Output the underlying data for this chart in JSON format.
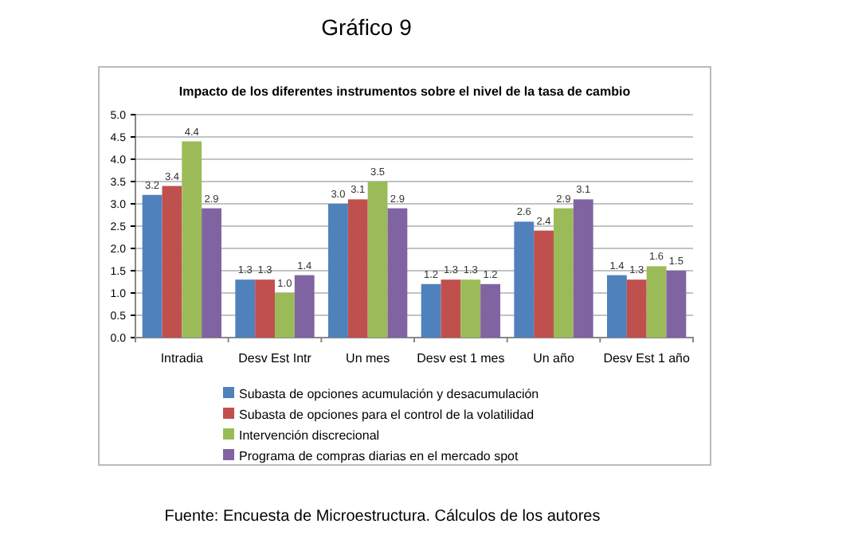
{
  "chart_data": {
    "type": "bar",
    "title": "Gráfico 9",
    "subtitle": "Impacto de los diferentes instrumentos sobre el nivel de la tasa de cambio",
    "categories": [
      "Intradia",
      "Desv Est Intr",
      "Un mes",
      "Desv est 1 mes",
      "Un año",
      "Desv Est 1 año"
    ],
    "series": [
      {
        "name": "Subasta de opciones acumulación y desacumulación",
        "color": "#4f81bd",
        "values": [
          3.2,
          1.3,
          3.0,
          1.2,
          2.6,
          1.4
        ],
        "value_labels": [
          "3.2",
          "1.3",
          "3.0",
          "1.2",
          "2.6",
          "1.4"
        ]
      },
      {
        "name": "Subasta de opciones para el control de la volatilidad",
        "color": "#c0504d",
        "values": [
          3.4,
          1.3,
          3.1,
          1.3,
          2.4,
          1.3
        ],
        "value_labels": [
          "3.4",
          "1.3",
          "3.1",
          "1.3",
          "2.4",
          "1.3"
        ]
      },
      {
        "name": "Intervención discrecional",
        "color": "#9bbb59",
        "values": [
          4.4,
          1.0,
          3.5,
          1.3,
          2.9,
          1.6
        ],
        "value_labels": [
          "4.4",
          "1.0",
          "3.5",
          "1.3",
          "2.9",
          "1.6"
        ]
      },
      {
        "name": "Programa de compras diarias en el mercado spot",
        "color": "#8064a2",
        "values": [
          2.9,
          1.4,
          2.9,
          1.2,
          3.1,
          1.5
        ],
        "value_labels": [
          "2.9",
          "1.4",
          "2.9",
          "1.2",
          "3.1",
          "1.5"
        ]
      }
    ],
    "ylim": [
      0,
      5
    ],
    "yticks": [
      {
        "value": 0,
        "label": "0.0"
      },
      {
        "value": 0.5,
        "label": "0.5"
      },
      {
        "value": 1,
        "label": "1.0"
      },
      {
        "value": 1.5,
        "label": "1.5"
      },
      {
        "value": 2,
        "label": "2.0"
      },
      {
        "value": 2.5,
        "label": "2.5"
      },
      {
        "value": 3,
        "label": "3.0"
      },
      {
        "value": 3.5,
        "label": "3.5"
      },
      {
        "value": 4,
        "label": "4.0"
      },
      {
        "value": 4.5,
        "label": "4.5"
      },
      {
        "value": 5,
        "label": "5.0"
      }
    ],
    "grid": "y",
    "legend": "bottom",
    "annotations": [
      "Fuente: Encuesta de Microestructura. Cálculos de los autores"
    ]
  }
}
